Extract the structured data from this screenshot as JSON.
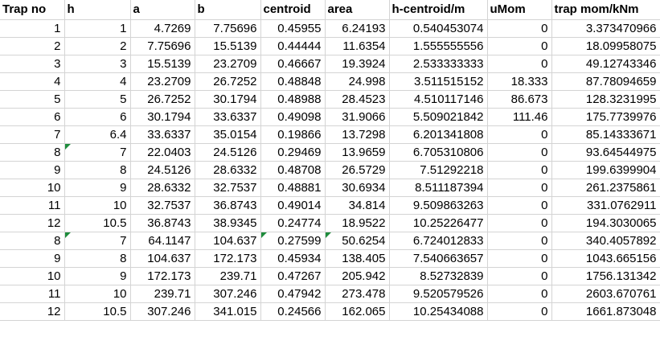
{
  "headers": [
    "Trap no",
    "h",
    "a",
    "b",
    "centroid",
    "area",
    "h-centroid/m",
    "uMom",
    "trap mom/kNm"
  ],
  "rows": [
    [
      "1",
      "1",
      "4.7269",
      "7.75696",
      "0.45955",
      "6.24193",
      "0.540453074",
      "0",
      "3.373470966"
    ],
    [
      "2",
      "2",
      "7.75696",
      "15.5139",
      "0.44444",
      "11.6354",
      "1.555555556",
      "0",
      "18.09958075"
    ],
    [
      "3",
      "3",
      "15.5139",
      "23.2709",
      "0.46667",
      "19.3924",
      "2.533333333",
      "0",
      "49.12743346"
    ],
    [
      "4",
      "4",
      "23.2709",
      "26.7252",
      "0.48848",
      "24.998",
      "3.511515152",
      "18.333",
      "87.78094659"
    ],
    [
      "5",
      "5",
      "26.7252",
      "30.1794",
      "0.48988",
      "28.4523",
      "4.510117146",
      "86.673",
      "128.3231995"
    ],
    [
      "6",
      "6",
      "30.1794",
      "33.6337",
      "0.49098",
      "31.9066",
      "5.509021842",
      "111.46",
      "175.7739976"
    ],
    [
      "7",
      "6.4",
      "33.6337",
      "35.0154",
      "0.19866",
      "13.7298",
      "6.201341808",
      "0",
      "85.14333671"
    ],
    [
      "8",
      "7",
      "22.0403",
      "24.5126",
      "0.29469",
      "13.9659",
      "6.705310806",
      "0",
      "93.64544975"
    ],
    [
      "9",
      "8",
      "24.5126",
      "28.6332",
      "0.48708",
      "26.5729",
      "7.51292218",
      "0",
      "199.6399904"
    ],
    [
      "10",
      "9",
      "28.6332",
      "32.7537",
      "0.48881",
      "30.6934",
      "8.511187394",
      "0",
      "261.2375861"
    ],
    [
      "11",
      "10",
      "32.7537",
      "36.8743",
      "0.49014",
      "34.814",
      "9.509863263",
      "0",
      "331.0762911"
    ],
    [
      "12",
      "10.5",
      "36.8743",
      "38.9345",
      "0.24774",
      "18.9522",
      "10.25226477",
      "0",
      "194.3030065"
    ],
    [
      "8",
      "7",
      "64.1147",
      "104.637",
      "0.27599",
      "50.6254",
      "6.724012833",
      "0",
      "340.4057892"
    ],
    [
      "9",
      "8",
      "104.637",
      "172.173",
      "0.45934",
      "138.405",
      "7.540663657",
      "0",
      "1043.665156"
    ],
    [
      "10",
      "9",
      "172.173",
      "239.71",
      "0.47267",
      "205.942",
      "8.52732839",
      "0",
      "1756.131342"
    ],
    [
      "11",
      "10",
      "239.71",
      "307.246",
      "0.47942",
      "273.478",
      "9.520579526",
      "0",
      "2603.670761"
    ],
    [
      "12",
      "10.5",
      "307.246",
      "341.015",
      "0.24566",
      "162.065",
      "10.25434088",
      "0",
      "1661.873048"
    ]
  ],
  "error_indicator_color": "#1e8c3c"
}
